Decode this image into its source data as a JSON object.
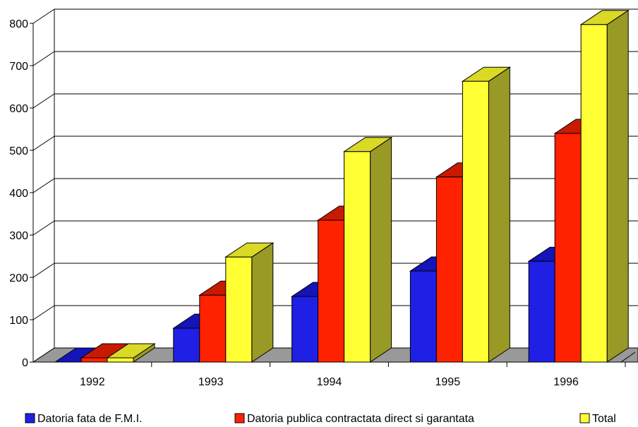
{
  "chart_data": {
    "type": "bar",
    "title": "",
    "xlabel": "",
    "ylabel": "",
    "categories": [
      "1992",
      "1993",
      "1994",
      "1995",
      "1996"
    ],
    "series": [
      {
        "name": "Datoria fata de F.M.I.",
        "values": [
          0,
          80,
          155,
          215,
          238
        ],
        "color": "#1f1fe6",
        "top_color": "#1414b8",
        "side_color": "#0d0d80"
      },
      {
        "name": "Datoria publica contractata direct si garantata",
        "values": [
          10,
          158,
          335,
          437,
          540
        ],
        "color": "#ff2200",
        "top_color": "#c81a00",
        "side_color": "#a51500"
      },
      {
        "name": "Total",
        "values": [
          10,
          248,
          497,
          663,
          797
        ],
        "color": "#ffff33",
        "top_color": "#d9d926",
        "side_color": "#999926"
      }
    ],
    "ylim": [
      0,
      800
    ],
    "yticks": [
      0,
      100,
      200,
      300,
      400,
      500,
      600,
      700,
      800
    ],
    "grid": true,
    "floor_color": "#999999",
    "legend": "bottom"
  }
}
